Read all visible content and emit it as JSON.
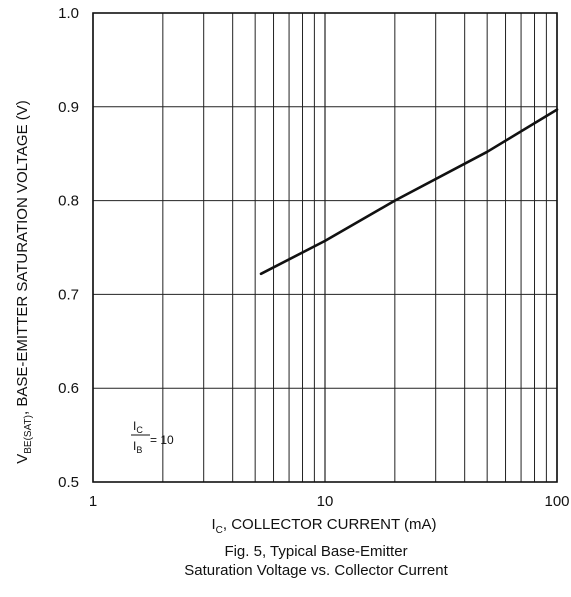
{
  "chart_data": {
    "type": "line",
    "x_scale": "log",
    "y_scale": "linear",
    "xlim": [
      1,
      100
    ],
    "ylim": [
      0.5,
      1.0
    ],
    "x_ticks": [
      1,
      10,
      100
    ],
    "x_tick_labels": [
      "1",
      "10",
      "100"
    ],
    "y_ticks": [
      0.5,
      0.6,
      0.7,
      0.8,
      0.9,
      1.0
    ],
    "y_tick_labels": [
      "0.5",
      "0.6",
      "0.7",
      "0.8",
      "0.9",
      "1.0"
    ],
    "grid": true,
    "series": [
      {
        "x": [
          5.3,
          10,
          20,
          50,
          100
        ],
        "y": [
          0.722,
          0.757,
          0.8,
          0.852,
          0.897
        ],
        "color": "#111111"
      }
    ],
    "ylabel": {
      "sym": "V",
      "sub": "BE(SAT)",
      "text": ", BASE-EMITTER SATURATION VOLTAGE (V)"
    },
    "xlabel": {
      "sym": "I",
      "sub": "C",
      "text": ", COLLECTOR CURRENT (mA)"
    },
    "caption_lines": [
      "Fig. 5, Typical Base-Emitter",
      "Saturation Voltage vs. Collector Current"
    ],
    "annotation": {
      "num_sym": "I",
      "num_sub": "C",
      "den_sym": "I",
      "den_sub": "B",
      "value": "= 10"
    }
  }
}
